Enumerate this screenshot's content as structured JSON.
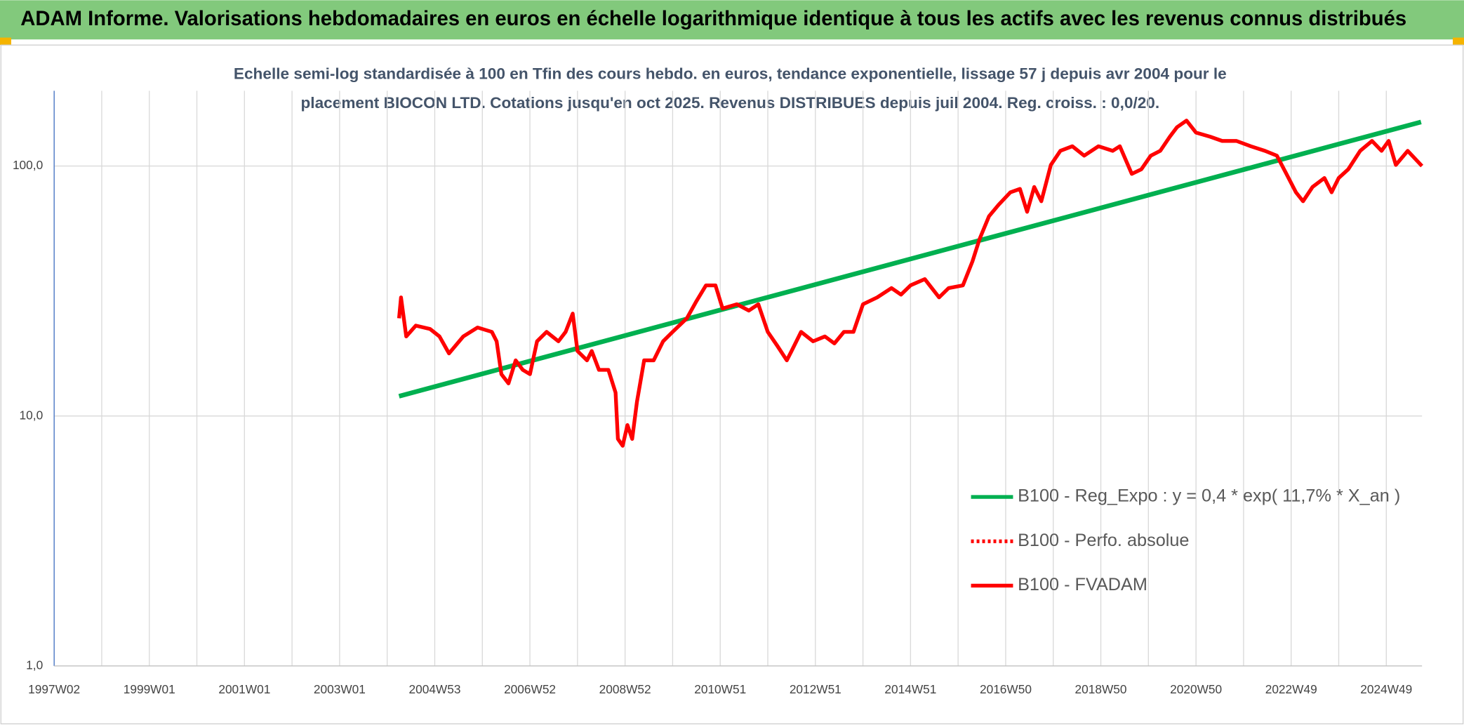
{
  "header": {
    "title": "ADAM Informe. Valorisations hebdomadaires en euros en échelle logarithmique identique à tous les actifs avec les revenus connus distribués"
  },
  "chart_data": {
    "type": "line",
    "subtitle": [
      "Echelle semi-log standardisée à 100 en Tfin des cours hebdo. en euros, tendance exponentielle, lissage 57 j depuis avr 2004 pour le",
      "placement BIOCON LTD. Cotations jusqu'en oct 2025. Revenus DISTRIBUES depuis juil 2004. Reg. croiss. : 0,0/20."
    ],
    "log_scale": true,
    "grid": true,
    "legend": "lower right",
    "xlim": [
      1997.0,
      2025.75
    ],
    "xticks": [
      {
        "value": 1997.0,
        "label": "1997W02"
      },
      {
        "value": 1999.0,
        "label": "1999W01"
      },
      {
        "value": 2001.0,
        "label": "2001W01"
      },
      {
        "value": 2003.0,
        "label": "2003W01"
      },
      {
        "value": 2005.0,
        "label": "2004W53"
      },
      {
        "value": 2007.0,
        "label": "2006W52"
      },
      {
        "value": 2009.0,
        "label": "2008W52"
      },
      {
        "value": 2011.0,
        "label": "2010W51"
      },
      {
        "value": 2013.0,
        "label": "2012W51"
      },
      {
        "value": 2015.0,
        "label": "2014W51"
      },
      {
        "value": 2017.0,
        "label": "2016W50"
      },
      {
        "value": 2019.0,
        "label": "2018W50"
      },
      {
        "value": 2021.0,
        "label": "2020W50"
      },
      {
        "value": 2023.0,
        "label": "2022W49"
      },
      {
        "value": 2025.0,
        "label": "2024W49"
      }
    ],
    "xminorticks": [
      1998,
      2000,
      2002,
      2004,
      2006,
      2008,
      2010,
      2012,
      2014,
      2016,
      2018,
      2020,
      2022,
      2024
    ],
    "ylim": [
      1,
      200
    ],
    "yticks": [
      {
        "value": 1,
        "label": "1,0"
      },
      {
        "value": 10,
        "label": "10,0"
      },
      {
        "value": 100,
        "label": "100,0"
      }
    ],
    "series": [
      {
        "name": "B100 - Reg_Expo : y = 0,4 * exp( 11,7% *  X_an )",
        "color": "#00b050",
        "style": "solid",
        "x": [
          2004.25,
          2025.73
        ],
        "values": [
          12.0,
          150
        ]
      },
      {
        "name": "B100 - Perfo. absolue",
        "color": "#ff0000",
        "style": "dotted",
        "x": [],
        "values": []
      },
      {
        "name": "B100 - FVADAM",
        "color": "#ff0000",
        "style": "solid",
        "x": [
          2004.25,
          2004.29,
          2004.4,
          2004.6,
          2004.9,
          2005.1,
          2005.3,
          2005.6,
          2005.9,
          2006.2,
          2006.3,
          2006.4,
          2006.55,
          2006.7,
          2006.85,
          2007.0,
          2007.15,
          2007.35,
          2007.6,
          2007.75,
          2007.9,
          2008.0,
          2008.2,
          2008.3,
          2008.45,
          2008.65,
          2008.8,
          2008.85,
          2008.95,
          2009.05,
          2009.15,
          2009.25,
          2009.4,
          2009.6,
          2009.8,
          2010.0,
          2010.3,
          2010.5,
          2010.7,
          2010.9,
          2011.05,
          2011.35,
          2011.6,
          2011.8,
          2012.0,
          2012.2,
          2012.4,
          2012.5,
          2012.7,
          2012.95,
          2013.2,
          2013.4,
          2013.6,
          2013.8,
          2014.0,
          2014.3,
          2014.6,
          2014.8,
          2015.0,
          2015.3,
          2015.6,
          2015.8,
          2016.1,
          2016.3,
          2016.45,
          2016.65,
          2016.85,
          2017.1,
          2017.3,
          2017.45,
          2017.6,
          2017.75,
          2017.95,
          2018.15,
          2018.4,
          2018.65,
          2018.95,
          2019.25,
          2019.4,
          2019.65,
          2019.85,
          2020.05,
          2020.25,
          2020.45,
          2020.6,
          2020.8,
          2021.0,
          2021.3,
          2021.55,
          2021.85,
          2022.15,
          2022.45,
          2022.7,
          2022.9,
          2023.1,
          2023.25,
          2023.45,
          2023.7,
          2023.85,
          2024.0,
          2024.2,
          2024.45,
          2024.7,
          2024.9,
          2025.05,
          2025.2,
          2025.45,
          2025.75
        ],
        "values": [
          24.6,
          29.8,
          20.8,
          23,
          22.3,
          20.8,
          17.8,
          20.8,
          22.6,
          21.7,
          19.9,
          14.7,
          13.5,
          16.7,
          15.3,
          14.7,
          19.9,
          21.7,
          19.9,
          21.7,
          25.7,
          18.2,
          16.7,
          18.2,
          15.3,
          15.3,
          12.4,
          8.1,
          7.6,
          9.2,
          8.1,
          11.4,
          16.7,
          16.7,
          19.9,
          21.7,
          24.6,
          28.8,
          33.3,
          33.3,
          26.9,
          28.0,
          26.4,
          28,
          21.7,
          19.1,
          16.7,
          18.2,
          21.7,
          19.9,
          20.8,
          19.5,
          21.7,
          21.7,
          28,
          29.8,
          32.5,
          30.6,
          33.3,
          35.3,
          29.8,
          32.5,
          33.3,
          41.5,
          51,
          63,
          70,
          78.5,
          81,
          65.6,
          82.5,
          72.3,
          101,
          115,
          120,
          110,
          120,
          115,
          120,
          93,
          97,
          110,
          115,
          131,
          143,
          152,
          136,
          131,
          126,
          126,
          120,
          115,
          110,
          93,
          78.5,
          72.3,
          82.5,
          89.6,
          78.5,
          89.6,
          97,
          115,
          126,
          115,
          126,
          101,
          115,
          100
        ]
      }
    ]
  }
}
